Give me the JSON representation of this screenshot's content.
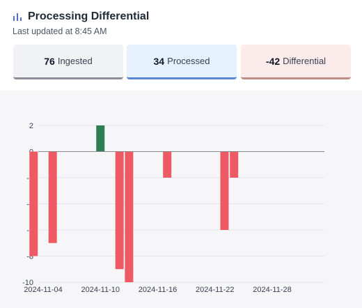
{
  "header": {
    "title": "Processing Differential",
    "updated": "Last updated at 8:45 AM"
  },
  "stats": {
    "ingested": {
      "value": "76",
      "label": "Ingested"
    },
    "processed": {
      "value": "34",
      "label": "Processed"
    },
    "differential": {
      "value": "-42",
      "label": "Differential"
    }
  },
  "colors": {
    "positive": "#2f7d52",
    "negative": "#ee5a64",
    "grid": "#e3e3ea",
    "zero_line": "#888888"
  },
  "chart_data": {
    "type": "bar",
    "x_ticks": [
      "2024-11-04",
      "2024-11-10",
      "2024-11-16",
      "2024-11-22",
      "2024-11-28"
    ],
    "x": [
      "2024-11-03",
      "2024-11-05",
      "2024-11-10",
      "2024-11-12",
      "2024-11-13",
      "2024-11-17",
      "2024-11-23",
      "2024-11-24"
    ],
    "values": [
      -8,
      -7,
      2,
      -9,
      -10,
      -2,
      -6,
      -2
    ],
    "ylim": [
      -10,
      2
    ],
    "y_ticks": [
      2,
      0,
      -2,
      -4,
      -6,
      -8,
      -10
    ],
    "grid": true
  }
}
